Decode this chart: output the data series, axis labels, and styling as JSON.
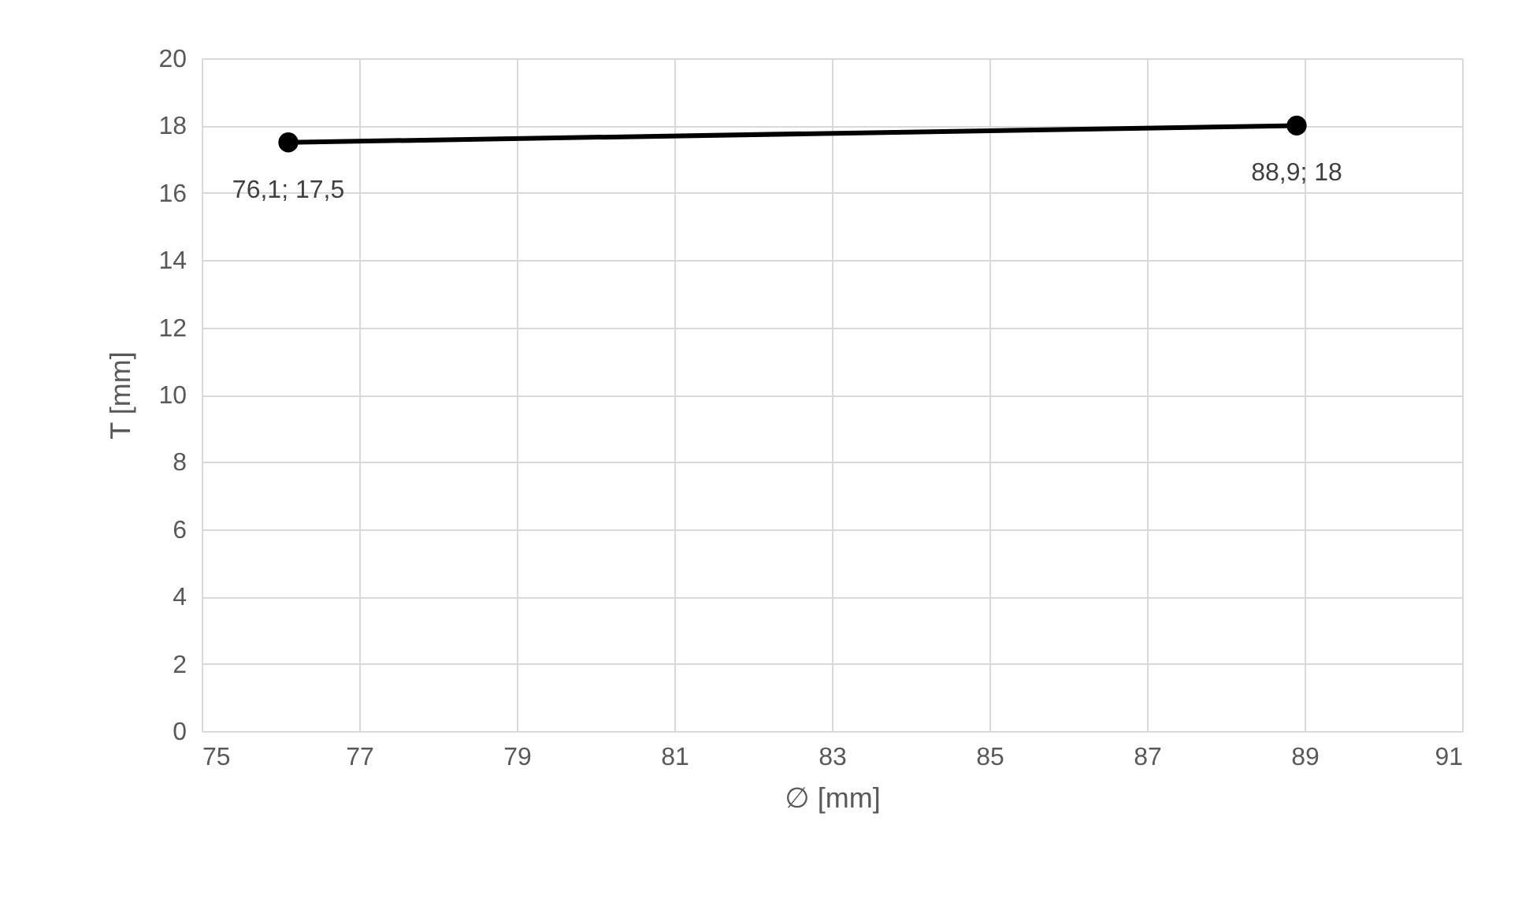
{
  "chart_data": {
    "type": "line",
    "xlabel": "∅ [mm]",
    "ylabel": "T [mm]",
    "x": [
      76.1,
      88.9
    ],
    "series": [
      {
        "color": "#000000",
        "values": [
          17.5,
          18
        ],
        "value_labels": [
          "76,1; 17,5",
          "88,9; 18"
        ]
      }
    ],
    "xlim": [
      75,
      91
    ],
    "xticks": [
      75,
      77,
      79,
      81,
      83,
      85,
      87,
      89,
      91
    ],
    "ylim": [
      0,
      20
    ],
    "yticks": [
      0,
      2,
      4,
      6,
      8,
      10,
      12,
      14,
      16,
      18,
      20
    ],
    "grid": true,
    "marker": "circle",
    "line_style": "solid"
  }
}
